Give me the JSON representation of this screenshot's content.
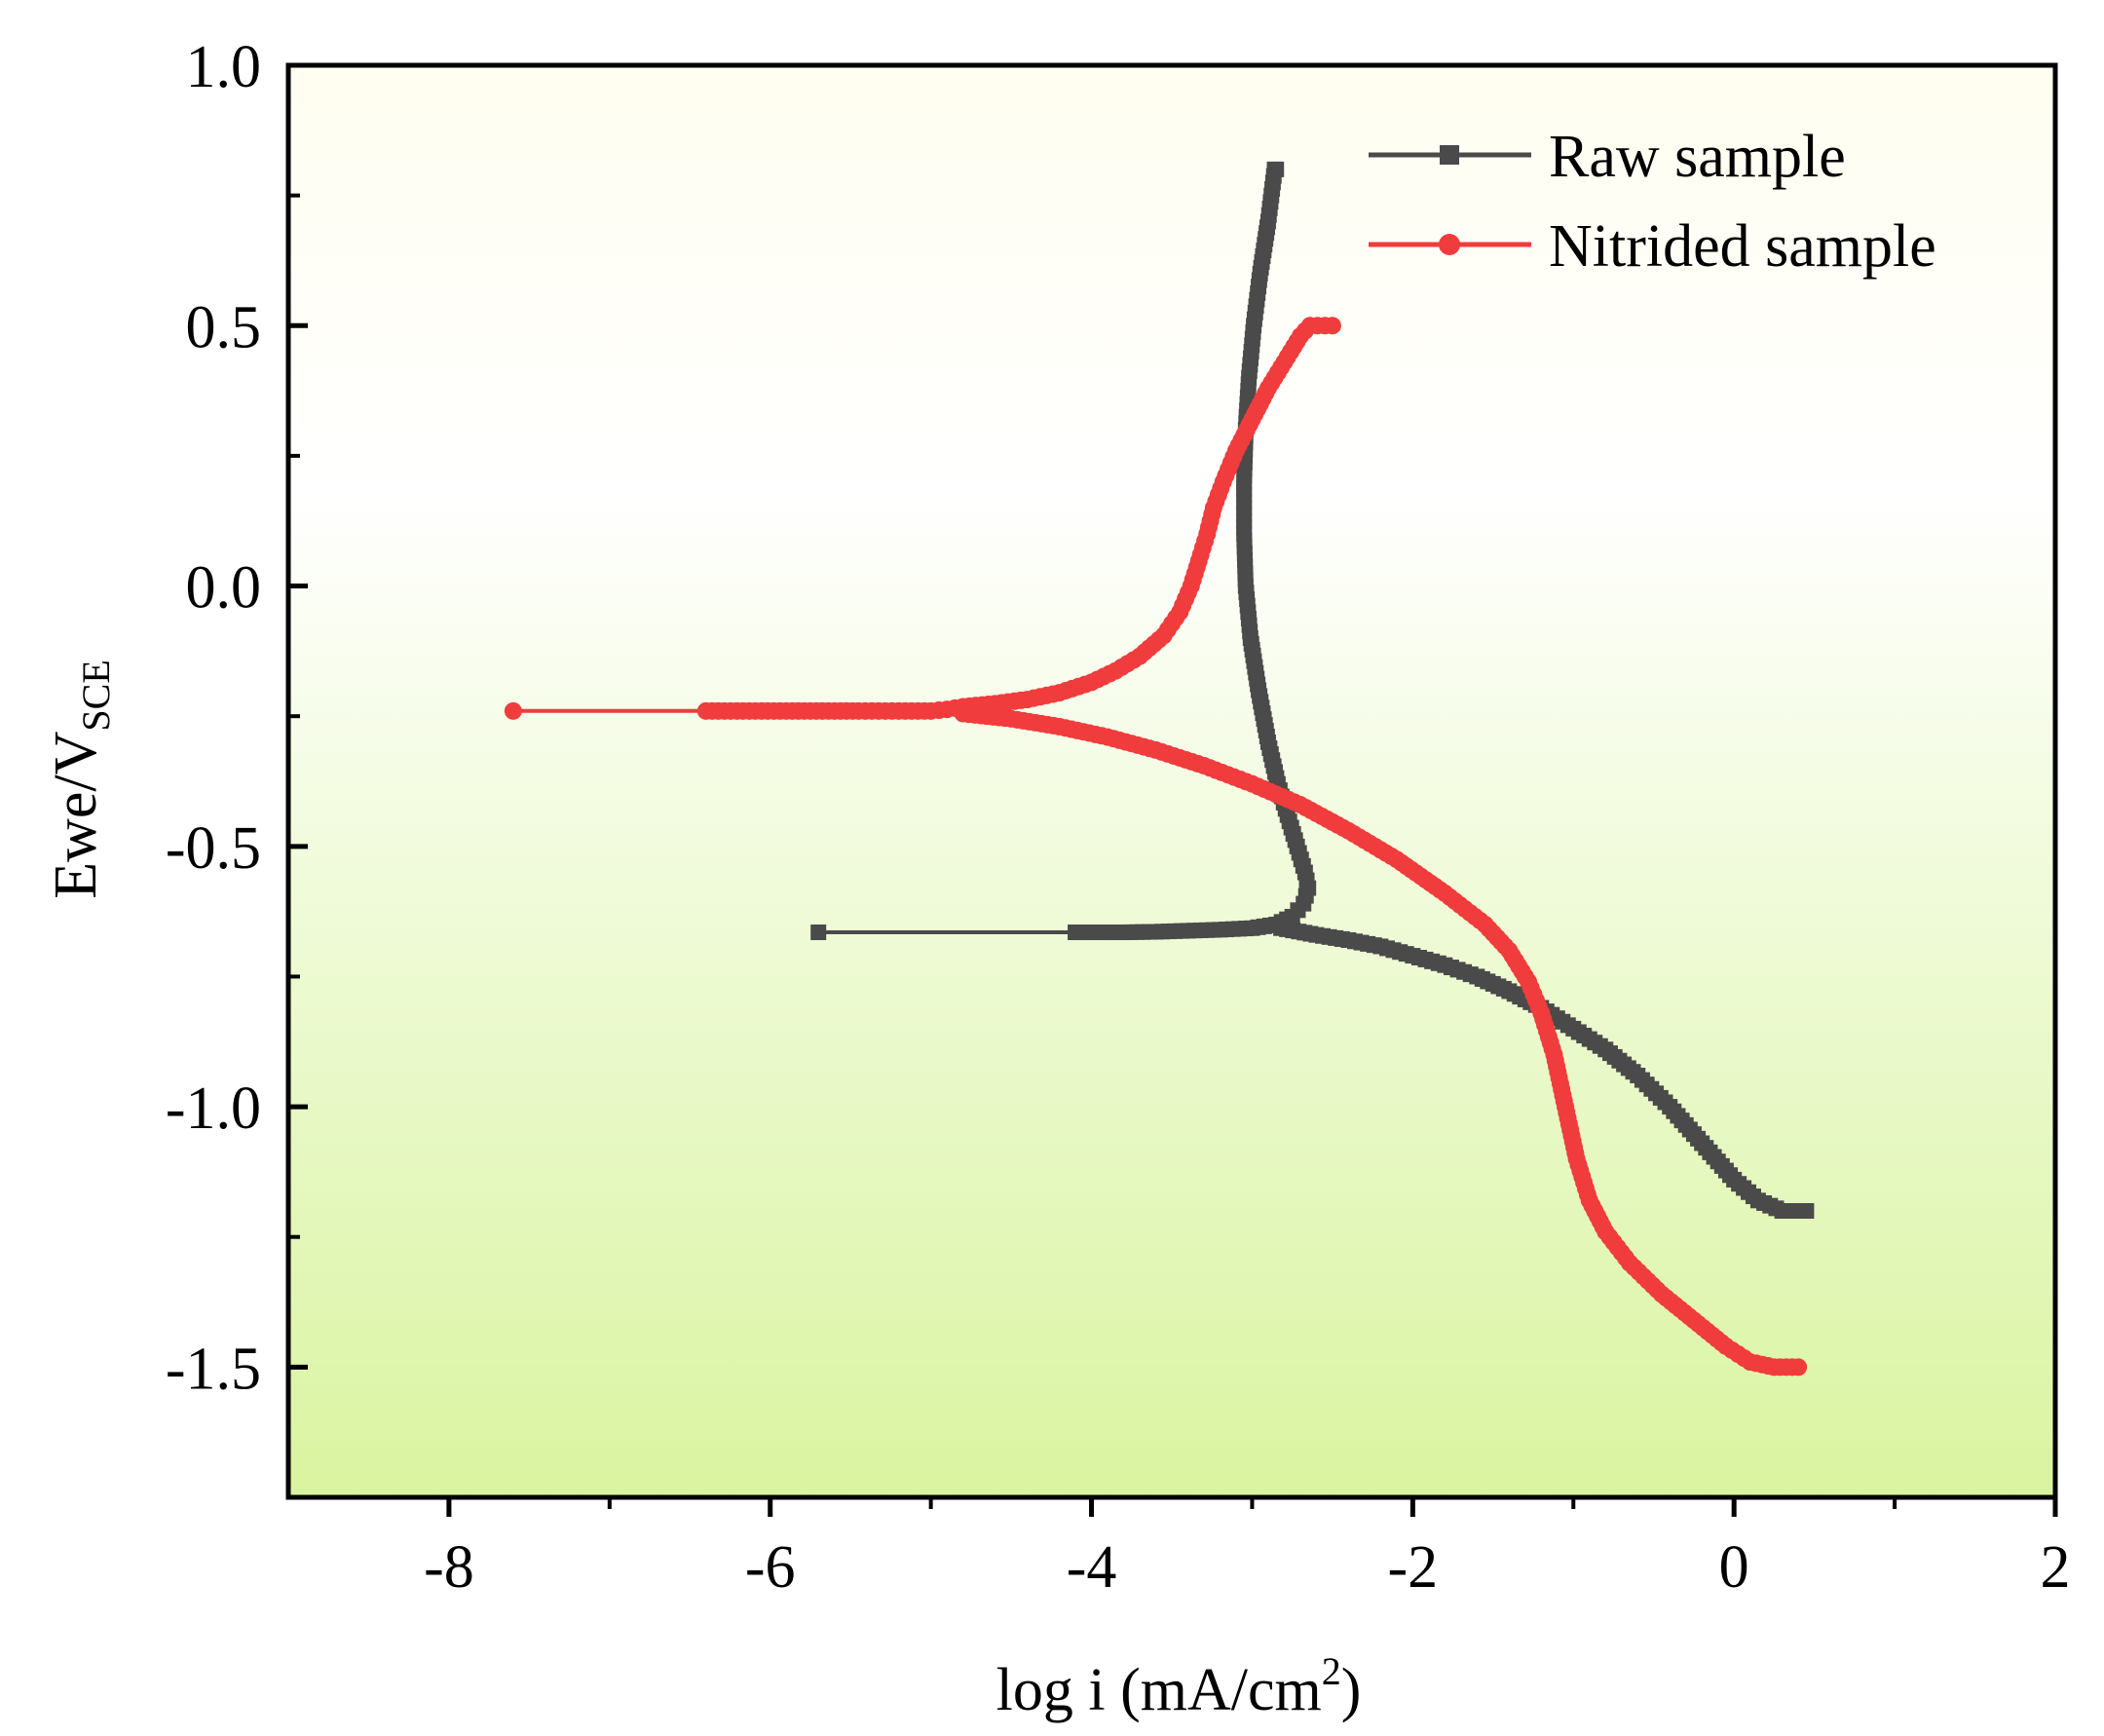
{
  "chart_data": {
    "type": "line",
    "title": "",
    "xlabel": "log i (mA/cm",
    "xlabel_superscript": "2",
    "xlabel_suffix": ")",
    "ylabel": "Ewe/V",
    "ylabel_subscript": "SCE",
    "xlim": [
      -9,
      2
    ],
    "ylim": [
      -1.75,
      1.0
    ],
    "xticks": [
      -8,
      -6,
      -4,
      -2,
      0,
      2
    ],
    "xtick_labels": [
      "-8",
      "-6",
      "-4",
      "-2",
      "0",
      "2"
    ],
    "yticks": [
      1.0,
      0.5,
      0.0,
      -0.5,
      -1.0,
      -1.5
    ],
    "ytick_labels": [
      "1.0",
      "0.5",
      "0.0",
      "-0.5",
      "-1.0",
      "-1.5"
    ],
    "grid": false,
    "legend_position": "top-right",
    "background_gradient": [
      "#fffef0",
      "#d9f4a0"
    ],
    "series": [
      {
        "name": "Raw sample",
        "color": "#4a4a4a",
        "marker": "square",
        "points": [
          [
            -5.7,
            -0.665
          ],
          [
            -4.1,
            -0.665
          ],
          [
            -3.8,
            -0.665
          ],
          [
            -3.6,
            -0.664
          ],
          [
            -3.4,
            -0.662
          ],
          [
            -3.2,
            -0.66
          ],
          [
            -3.0,
            -0.657
          ],
          [
            -2.85,
            -0.65
          ],
          [
            -2.75,
            -0.635
          ],
          [
            -2.68,
            -0.61
          ],
          [
            -2.65,
            -0.58
          ],
          [
            -2.67,
            -0.55
          ],
          [
            -2.72,
            -0.5
          ],
          [
            -2.78,
            -0.44
          ],
          [
            -2.84,
            -0.38
          ],
          [
            -2.9,
            -0.3
          ],
          [
            -2.96,
            -0.2
          ],
          [
            -3.01,
            -0.1
          ],
          [
            -3.04,
            0.0
          ],
          [
            -3.05,
            0.1
          ],
          [
            -3.05,
            0.2
          ],
          [
            -3.04,
            0.3
          ],
          [
            -3.02,
            0.4
          ],
          [
            -2.99,
            0.5
          ],
          [
            -2.95,
            0.6
          ],
          [
            -2.9,
            0.7
          ],
          [
            -2.86,
            0.8
          ],
          [
            -2.85,
            0.8
          ],
          [
            -2.82,
            -0.657
          ],
          [
            -2.6,
            -0.67
          ],
          [
            -2.4,
            -0.68
          ],
          [
            -2.2,
            -0.692
          ],
          [
            -2.0,
            -0.71
          ],
          [
            -1.8,
            -0.728
          ],
          [
            -1.6,
            -0.75
          ],
          [
            -1.4,
            -0.778
          ],
          [
            -1.2,
            -0.81
          ],
          [
            -1.0,
            -0.85
          ],
          [
            -0.8,
            -0.89
          ],
          [
            -0.6,
            -0.94
          ],
          [
            -0.4,
            -1.0
          ],
          [
            -0.2,
            -1.07
          ],
          [
            0.0,
            -1.14
          ],
          [
            0.15,
            -1.18
          ],
          [
            0.3,
            -1.2
          ],
          [
            0.45,
            -1.2
          ]
        ]
      },
      {
        "name": "Nitrided sample",
        "color": "#f03c3c",
        "marker": "circle",
        "points": [
          [
            -7.6,
            -0.24
          ],
          [
            -6.4,
            -0.24
          ],
          [
            -5.9,
            -0.24
          ],
          [
            -5.45,
            -0.24
          ],
          [
            -5.2,
            -0.24
          ],
          [
            -5.0,
            -0.24
          ],
          [
            -4.9,
            -0.237
          ],
          [
            -4.8,
            -0.232
          ],
          [
            -4.6,
            -0.226
          ],
          [
            -4.4,
            -0.218
          ],
          [
            -4.2,
            -0.205
          ],
          [
            -4.0,
            -0.185
          ],
          [
            -3.85,
            -0.163
          ],
          [
            -3.7,
            -0.135
          ],
          [
            -3.55,
            -0.095
          ],
          [
            -3.45,
            -0.05
          ],
          [
            -3.38,
            0.0
          ],
          [
            -3.32,
            0.06
          ],
          [
            -3.28,
            0.1
          ],
          [
            -3.24,
            0.15
          ],
          [
            -3.18,
            0.2
          ],
          [
            -3.1,
            0.26
          ],
          [
            -3.0,
            0.32
          ],
          [
            -2.9,
            0.38
          ],
          [
            -2.8,
            0.43
          ],
          [
            -2.7,
            0.48
          ],
          [
            -2.64,
            0.5
          ],
          [
            -2.5,
            0.5
          ],
          [
            -4.8,
            -0.245
          ],
          [
            -4.5,
            -0.255
          ],
          [
            -4.2,
            -0.27
          ],
          [
            -3.9,
            -0.29
          ],
          [
            -3.6,
            -0.315
          ],
          [
            -3.3,
            -0.345
          ],
          [
            -3.0,
            -0.38
          ],
          [
            -2.7,
            -0.42
          ],
          [
            -2.4,
            -0.47
          ],
          [
            -2.1,
            -0.525
          ],
          [
            -1.8,
            -0.59
          ],
          [
            -1.55,
            -0.65
          ],
          [
            -1.4,
            -0.7
          ],
          [
            -1.28,
            -0.76
          ],
          [
            -1.2,
            -0.82
          ],
          [
            -1.12,
            -0.9
          ],
          [
            -1.05,
            -1.0
          ],
          [
            -0.98,
            -1.1
          ],
          [
            -0.9,
            -1.18
          ],
          [
            -0.8,
            -1.24
          ],
          [
            -0.65,
            -1.3
          ],
          [
            -0.45,
            -1.36
          ],
          [
            -0.25,
            -1.41
          ],
          [
            -0.05,
            -1.46
          ],
          [
            0.1,
            -1.49
          ],
          [
            0.25,
            -1.5
          ],
          [
            0.4,
            -1.5
          ]
        ]
      }
    ]
  }
}
